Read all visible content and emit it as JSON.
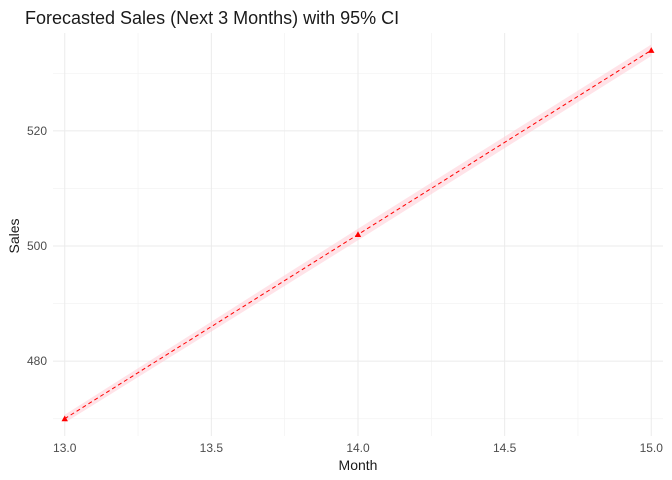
{
  "chart_data": {
    "type": "line",
    "title": "Forecasted Sales (Next 3 Months) with 95% CI",
    "xlabel": "Month",
    "ylabel": "Sales",
    "xlim": [
      12.96,
      15.04
    ],
    "ylim": [
      467,
      537
    ],
    "x_ticks": [
      13.0,
      13.5,
      14.0,
      14.5,
      15.0
    ],
    "x_tick_labels": [
      "13.0",
      "13.5",
      "14.0",
      "14.5",
      "15.0"
    ],
    "y_ticks": [
      480,
      500,
      520
    ],
    "y_tick_labels": [
      "480",
      "500",
      "520"
    ],
    "grid": true,
    "legend": "none",
    "series": [
      {
        "x": [
          13,
          14,
          15
        ],
        "y": [
          470.0,
          502.0,
          534.0
        ],
        "ci_lower": [
          469.3,
          501.0,
          533.0
        ],
        "ci_upper": [
          470.7,
          503.0,
          535.0
        ],
        "line_style": "dashed",
        "marker": "triangle",
        "color": "#ff0000",
        "ci_color": "#ffc0cb"
      }
    ]
  }
}
